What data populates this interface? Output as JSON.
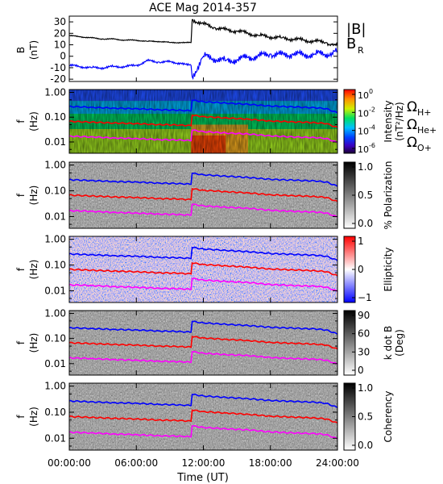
{
  "chart_data": [
    {
      "type": "line",
      "title": "ACE Mag 2014-357",
      "ylabel_line1": "B",
      "ylabel_line2": "(nT)",
      "ylim": [
        -22,
        35
      ],
      "yticks": [
        30,
        20,
        10,
        0,
        -10,
        -20
      ],
      "x": [
        0,
        1,
        2,
        3,
        4,
        5,
        6,
        7,
        8,
        9,
        10,
        10.9,
        11,
        12,
        13,
        14,
        15,
        16,
        17,
        18,
        19,
        20,
        21,
        22,
        23,
        23.5,
        24
      ],
      "series": [
        {
          "name": "|B|",
          "color": "#000000",
          "values": [
            18,
            17,
            16,
            15,
            15,
            14,
            14,
            13,
            13,
            12,
            12,
            12,
            32,
            28,
            25,
            23,
            22,
            20,
            18,
            17,
            16,
            15,
            14,
            13,
            12,
            10,
            9
          ]
        },
        {
          "name": "B",
          "subscript": "R",
          "color": "#0000ff",
          "values": [
            -8,
            -9,
            -10,
            -10,
            -9,
            -9,
            -8,
            -4,
            -5,
            -5,
            -6,
            -8,
            -18,
            0,
            -2,
            -4,
            -3,
            -1,
            0,
            2,
            1,
            2,
            1,
            2,
            2,
            3,
            4
          ]
        }
      ]
    },
    {
      "type": "heatmap",
      "ylabel_line1": "f",
      "ylabel_line2": "(Hz)",
      "yticks": [
        "1.00",
        "0.10",
        "0.01"
      ],
      "colorbar": {
        "colormap": "rainbow",
        "label_line1": "Intensity",
        "label_line2": "(nT²/Hz)",
        "ticks": [
          {
            "base": "10",
            "exp": "0"
          },
          {
            "base": "10",
            "exp": "-2"
          },
          {
            "base": "10",
            "exp": "-4"
          },
          {
            "base": "10",
            "exp": "-6"
          }
        ]
      },
      "gyro_legend": [
        {
          "sym": "Ω",
          "sub": "H+",
          "color": "#0000ff"
        },
        {
          "sym": "Ω",
          "sub": "He+",
          "color": "#ff0000"
        },
        {
          "sym": "Ω",
          "sub": "O+",
          "color": "#ff00ff"
        }
      ]
    },
    {
      "type": "heatmap",
      "ylabel_line1": "f",
      "ylabel_line2": "(Hz)",
      "yticks": [
        "1.00",
        "0.10",
        "0.01"
      ],
      "colorbar": {
        "colormap": "gray_r",
        "label_line1": "% Polarization",
        "ticks": [
          "1.0",
          "0.5",
          "0.0"
        ]
      }
    },
    {
      "type": "heatmap",
      "ylabel_line1": "f",
      "ylabel_line2": "(Hz)",
      "yticks": [
        "1.00",
        "0.10",
        "0.01"
      ],
      "colorbar": {
        "colormap": "bwr",
        "label_line1": "Ellipticity",
        "ticks": [
          "1",
          "0",
          "−1"
        ]
      }
    },
    {
      "type": "heatmap",
      "ylabel_line1": "f",
      "ylabel_line2": "(Hz)",
      "yticks": [
        "1.00",
        "0.10",
        "0.01"
      ],
      "colorbar": {
        "colormap": "gray_r",
        "label_line1": "k dot B",
        "label_line2": "(Deg)",
        "ticks": [
          "90",
          "60",
          "30",
          "0"
        ]
      }
    },
    {
      "type": "heatmap",
      "ylabel_line1": "f",
      "ylabel_line2": "(Hz)",
      "yticks": [
        "1.00",
        "0.10",
        "0.01"
      ],
      "colorbar": {
        "colormap": "gray_r",
        "label_line1": "Coherency",
        "ticks": [
          "1.0",
          "0.5",
          "0.0"
        ]
      }
    }
  ],
  "x_axis": {
    "label": "Time (UT)",
    "ticks": [
      "00:00:00",
      "06:00:00",
      "12:00:00",
      "18:00:00",
      "24:00:00"
    ],
    "range_hours": [
      0,
      24
    ]
  },
  "gyrofrequency_lines": {
    "x": [
      0,
      2,
      4,
      6,
      8,
      10,
      10.9,
      11,
      12,
      14,
      16,
      18,
      20,
      22,
      23,
      24
    ],
    "H+": [
      0.27,
      0.25,
      0.23,
      0.22,
      0.2,
      0.19,
      0.18,
      0.48,
      0.42,
      0.37,
      0.33,
      0.28,
      0.26,
      0.24,
      0.22,
      0.15
    ],
    "He+": [
      0.068,
      0.063,
      0.058,
      0.055,
      0.05,
      0.048,
      0.045,
      0.12,
      0.105,
      0.093,
      0.083,
      0.07,
      0.065,
      0.06,
      0.055,
      0.038
    ],
    "O+": [
      0.017,
      0.016,
      0.0145,
      0.0137,
      0.0125,
      0.012,
      0.0113,
      0.03,
      0.026,
      0.023,
      0.021,
      0.0175,
      0.016,
      0.015,
      0.0138,
      0.0095
    ]
  }
}
